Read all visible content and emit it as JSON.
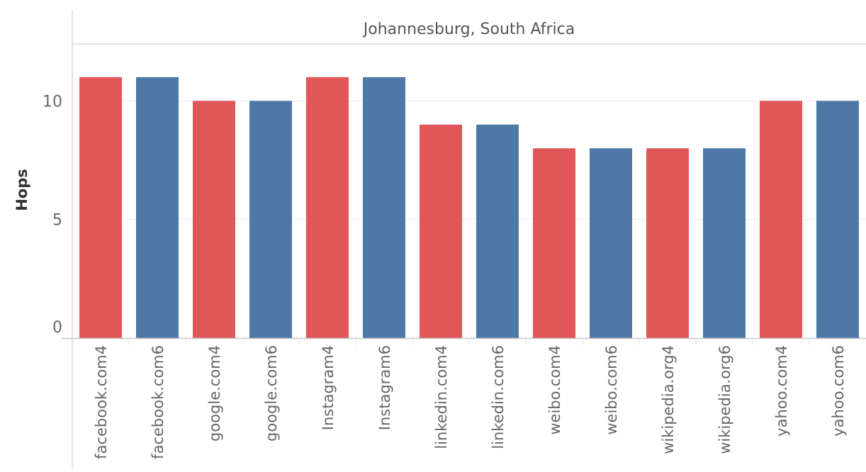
{
  "chart_data": {
    "type": "bar",
    "title": "Johannesburg, South Africa",
    "xlabel": "",
    "ylabel": "Hops",
    "ylim": [
      0,
      12.4
    ],
    "yticks": [
      0,
      5,
      10
    ],
    "categories": [
      "facebook.com4",
      "facebook.com6",
      "google.com4",
      "google.com6",
      "Instagram4",
      "Instagram6",
      "linkedin.com4",
      "linkedin.com6",
      "weibo.com4",
      "weibo.com6",
      "wikipedia.org4",
      "wikipedia.org6",
      "yahoo.com4",
      "yahoo.com6"
    ],
    "values": [
      11,
      11,
      10,
      10,
      11,
      11,
      9,
      9,
      8,
      8,
      8,
      8,
      10,
      10
    ],
    "bar_colors": [
      "#e15759",
      "#4e79a7",
      "#e15759",
      "#4e79a7",
      "#e15759",
      "#4e79a7",
      "#e15759",
      "#4e79a7",
      "#e15759",
      "#4e79a7",
      "#e15759",
      "#4e79a7",
      "#e15759",
      "#4e79a7"
    ],
    "grid": true,
    "legend": "none"
  },
  "colors": {
    "ipv4": "#e15759",
    "ipv6": "#4e79a7",
    "gridline": "#ececec",
    "axis": "#c8c8c8",
    "text": "#666666",
    "ylabel_text": "#333333"
  }
}
